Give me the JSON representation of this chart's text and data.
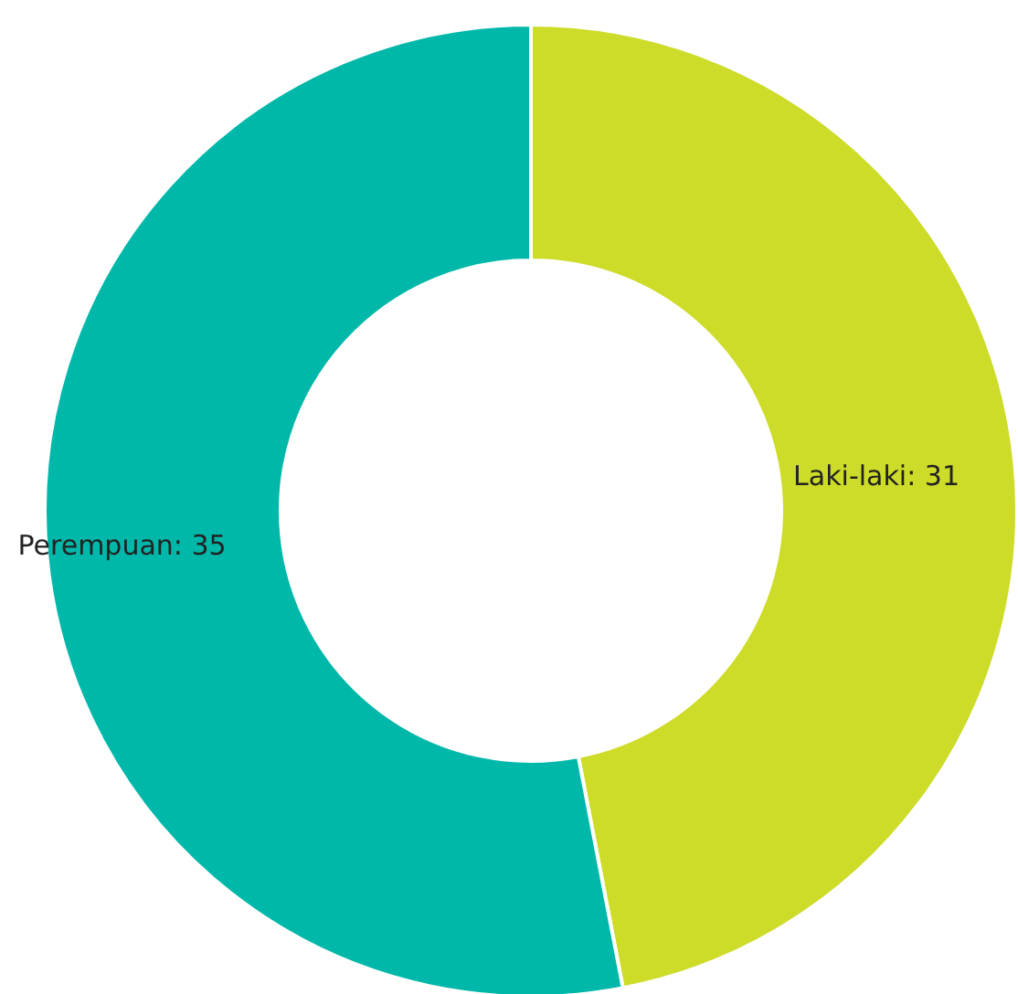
{
  "chart_data": {
    "type": "donut",
    "categories": [
      "Laki-laki",
      "Perempuan"
    ],
    "values": [
      31,
      35
    ],
    "value_labels": [
      ": 31",
      ": 35"
    ],
    "colors": [
      "#cddc29",
      "#00b8a9"
    ]
  }
}
